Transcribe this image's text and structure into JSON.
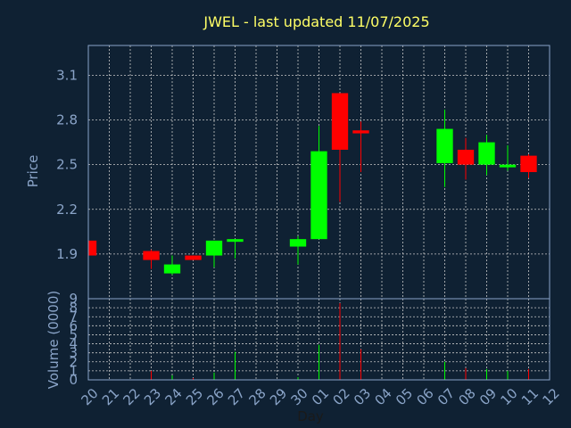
{
  "chart_data": {
    "type": "candlestick",
    "title": "JWEL - last updated 11/07/2025",
    "xlabel": "Day",
    "ylabel": "Price",
    "volume_ylabel": "Volume (0000)",
    "x_ticks": [
      "20",
      "21",
      "22",
      "23",
      "24",
      "25",
      "26",
      "27",
      "28",
      "29",
      "30",
      "01",
      "02",
      "03",
      "04",
      "05",
      "06",
      "07",
      "08",
      "09",
      "10",
      "11",
      "12"
    ],
    "price_ticks": [
      1.9,
      2.2,
      2.5,
      2.8,
      3.1
    ],
    "price_range": [
      1.6,
      3.3
    ],
    "volume_ticks": [
      0,
      1,
      2,
      3,
      4,
      5,
      6,
      7,
      8,
      9
    ],
    "volume_range": [
      0,
      9
    ],
    "grid": true,
    "up_color": "#00ff00",
    "down_color": "#ff0000",
    "candles": [
      {
        "day": "20",
        "open": 1.99,
        "high": 1.99,
        "low": 1.88,
        "close": 1.89,
        "volume": 0.3
      },
      {
        "day": "23",
        "open": 1.92,
        "high": 1.93,
        "low": 1.8,
        "close": 1.86,
        "volume": 1.0
      },
      {
        "day": "24",
        "open": 1.77,
        "high": 1.89,
        "low": 1.76,
        "close": 1.83,
        "volume": 0.5
      },
      {
        "day": "25",
        "open": 1.89,
        "high": 1.89,
        "low": 1.86,
        "close": 1.86,
        "volume": 0.2
      },
      {
        "day": "26",
        "open": 1.89,
        "high": 1.99,
        "low": 1.81,
        "close": 1.99,
        "volume": 0.8
      },
      {
        "day": "27",
        "open": 1.99,
        "high": 2.0,
        "low": 1.87,
        "close": 2.0,
        "volume": 3.1
      },
      {
        "day": "30",
        "open": 1.95,
        "high": 2.02,
        "low": 1.83,
        "close": 2.0,
        "volume": 0.3
      },
      {
        "day": "01",
        "open": 2.0,
        "high": 2.76,
        "low": 2.0,
        "close": 2.59,
        "volume": 3.9
      },
      {
        "day": "02",
        "open": 2.98,
        "high": 2.98,
        "low": 2.25,
        "close": 2.6,
        "volume": 8.5
      },
      {
        "day": "03",
        "open": 2.73,
        "high": 2.79,
        "low": 2.45,
        "close": 2.71,
        "volume": 3.4
      },
      {
        "day": "07",
        "open": 2.51,
        "high": 2.87,
        "low": 2.35,
        "close": 2.74,
        "volume": 2.0
      },
      {
        "day": "08",
        "open": 2.6,
        "high": 2.68,
        "low": 2.4,
        "close": 2.5,
        "volume": 1.3
      },
      {
        "day": "09",
        "open": 2.5,
        "high": 2.7,
        "low": 2.43,
        "close": 2.65,
        "volume": 1.2
      },
      {
        "day": "10",
        "open": 2.49,
        "high": 2.63,
        "low": 2.46,
        "close": 2.5,
        "volume": 1.0
      },
      {
        "day": "11",
        "open": 2.56,
        "high": 2.57,
        "low": 2.41,
        "close": 2.45,
        "volume": 1.2
      }
    ]
  }
}
